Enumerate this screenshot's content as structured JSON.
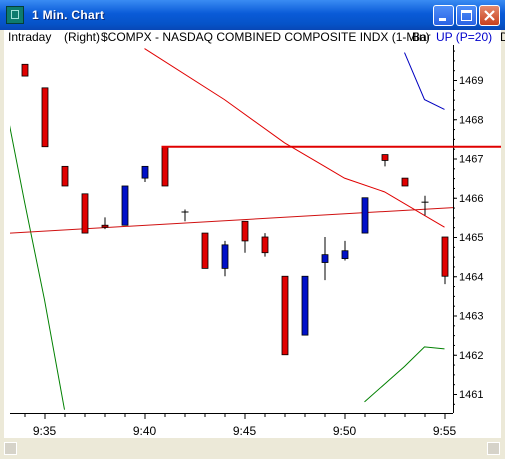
{
  "window": {
    "title": "1 Min. Chart",
    "icon": "chart-app-icon",
    "controls": [
      "minimize-icon",
      "maximize-icon",
      "close-icon"
    ]
  },
  "header": {
    "mode": "Intraday",
    "scale": "(Right)",
    "symbol": "$COMPX - NASDAQ COMBINED COMPOSITE INDX  (1-Min)",
    "chart_style": "Bar",
    "indicator": "UP (P=20)",
    "extra": "D"
  },
  "colors": {
    "down_bar": "#e00000",
    "up_bar": "#0010c8",
    "resistance": "#e00000",
    "regression": "#d01010",
    "upper_band": "#0000c0",
    "lower_band": "#008000",
    "band_mid": "#e00000"
  },
  "chart_data": {
    "type": "ohlc",
    "x_tick_labels": [
      "9:35",
      "9:40",
      "9:45",
      "9:50",
      "9:55"
    ],
    "y_tick_labels": [
      "1469",
      "1468",
      "1467",
      "1466",
      "1465",
      "1464",
      "1463",
      "1462",
      "1461"
    ],
    "y_axis_position": "right",
    "ylim": [
      1460.8,
      1469.7
    ],
    "bars": [
      {
        "t": "9:34",
        "open": 1469.4,
        "high": 1469.4,
        "low": 1469.1,
        "close": 1469.1,
        "dir": "down"
      },
      {
        "t": "9:35",
        "open": 1468.8,
        "high": 1468.8,
        "low": 1467.3,
        "close": 1467.3,
        "dir": "down"
      },
      {
        "t": "9:36",
        "open": 1466.8,
        "high": 1466.8,
        "low": 1466.3,
        "close": 1466.3,
        "dir": "down"
      },
      {
        "t": "9:37",
        "open": 1466.1,
        "high": 1466.1,
        "low": 1465.1,
        "close": 1465.1,
        "dir": "down"
      },
      {
        "t": "9:38",
        "open": 1465.3,
        "high": 1465.5,
        "low": 1465.2,
        "close": 1465.25,
        "dir": "down"
      },
      {
        "t": "9:39",
        "open": 1465.3,
        "high": 1466.3,
        "low": 1465.3,
        "close": 1466.3,
        "dir": "up"
      },
      {
        "t": "9:40",
        "open": 1466.5,
        "high": 1466.8,
        "low": 1466.4,
        "close": 1466.8,
        "dir": "up"
      },
      {
        "t": "9:41",
        "open": 1467.3,
        "high": 1467.3,
        "low": 1466.3,
        "close": 1466.3,
        "dir": "down"
      },
      {
        "t": "9:42",
        "open": 1465.65,
        "high": 1465.7,
        "low": 1465.4,
        "close": 1465.65,
        "dir": "flat"
      },
      {
        "t": "9:43",
        "open": 1465.1,
        "high": 1465.1,
        "low": 1464.2,
        "close": 1464.2,
        "dir": "down"
      },
      {
        "t": "9:44",
        "open": 1464.2,
        "high": 1464.9,
        "low": 1464.0,
        "close": 1464.8,
        "dir": "up"
      },
      {
        "t": "9:45",
        "open": 1465.4,
        "high": 1465.4,
        "low": 1464.6,
        "close": 1464.9,
        "dir": "down"
      },
      {
        "t": "9:46",
        "open": 1465.0,
        "high": 1465.1,
        "low": 1464.5,
        "close": 1464.6,
        "dir": "down"
      },
      {
        "t": "9:47",
        "open": 1464.0,
        "high": 1464.0,
        "low": 1462.0,
        "close": 1462.0,
        "dir": "down"
      },
      {
        "t": "9:48",
        "open": 1462.5,
        "high": 1464.0,
        "low": 1462.5,
        "close": 1464.0,
        "dir": "up"
      },
      {
        "t": "9:49",
        "open": 1464.35,
        "high": 1465.0,
        "low": 1463.9,
        "close": 1464.55,
        "dir": "up"
      },
      {
        "t": "9:50",
        "open": 1464.45,
        "high": 1464.9,
        "low": 1464.4,
        "close": 1464.65,
        "dir": "up"
      },
      {
        "t": "9:51",
        "open": 1465.1,
        "high": 1466.0,
        "low": 1465.1,
        "close": 1466.0,
        "dir": "up"
      },
      {
        "t": "9:52",
        "open": 1467.1,
        "high": 1467.1,
        "low": 1466.8,
        "close": 1466.95,
        "dir": "down"
      },
      {
        "t": "9:53",
        "open": 1466.5,
        "high": 1466.5,
        "low": 1466.3,
        "close": 1466.3,
        "dir": "down"
      },
      {
        "t": "9:54",
        "open": 1465.9,
        "high": 1466.05,
        "low": 1465.55,
        "close": 1465.9,
        "dir": "flat"
      },
      {
        "t": "9:55",
        "open": 1465.0,
        "high": 1465.0,
        "low": 1463.8,
        "close": 1464.0,
        "dir": "down"
      }
    ],
    "resistance_line": {
      "y": 1467.3,
      "from": "9:41"
    },
    "regression_line": {
      "start": {
        "t": "9:34",
        "y": 1465.1
      },
      "end": {
        "t": "9:55",
        "y": 1465.75
      }
    },
    "upper_band": [
      {
        "t": "9:53",
        "y": 1469.7
      },
      {
        "t": "9:54",
        "y": 1468.5
      },
      {
        "t": "9:55",
        "y": 1468.25
      }
    ],
    "mid_band": [
      {
        "t": "9:40",
        "y": 1469.8
      },
      {
        "t": "9:44",
        "y": 1468.5
      },
      {
        "t": "9:47",
        "y": 1467.4
      },
      {
        "t": "9:49",
        "y": 1466.8
      },
      {
        "t": "9:50",
        "y": 1466.5
      },
      {
        "t": "9:52",
        "y": 1466.15
      },
      {
        "t": "9:54",
        "y": 1465.55
      },
      {
        "t": "9:55",
        "y": 1465.25
      }
    ],
    "lower_band_left": [
      {
        "t": "9:33",
        "y": 1468.5
      },
      {
        "t": "9:34",
        "y": 1465.9
      },
      {
        "t": "9:35",
        "y": 1463.4
      },
      {
        "t": "9:36",
        "y": 1460.6
      }
    ],
    "lower_band_right": [
      {
        "t": "9:51",
        "y": 1460.8
      },
      {
        "t": "9:53",
        "y": 1461.7
      },
      {
        "t": "9:54",
        "y": 1462.2
      },
      {
        "t": "9:55",
        "y": 1462.15
      }
    ]
  }
}
